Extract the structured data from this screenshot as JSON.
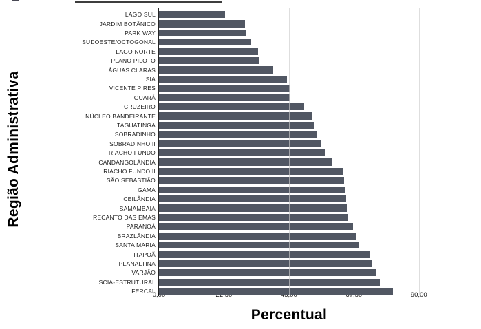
{
  "chart_data": {
    "type": "bar",
    "orientation": "horizontal",
    "title": "",
    "xlabel": "Percentual",
    "ylabel": "Região Administrativa",
    "xlim": [
      0,
      90
    ],
    "xticks": [
      0,
      22.5,
      45,
      67.5,
      90
    ],
    "xtick_labels": [
      "0,00",
      "22,50",
      "45,00",
      "67,50",
      "90,00"
    ],
    "grid": "vertical-light",
    "legend": "none",
    "bar_color": "#515763",
    "gridline_color": "#e0e0e0",
    "categories": [
      "LAGO SUL",
      "JARDIM BOTÂNICO",
      "PARK WAY",
      "SUDOESTE/OCTOGONAL",
      "LAGO NORTE",
      "PLANO PILOTO",
      "ÁGUAS CLARAS",
      "SIA",
      "VICENTE PIRES",
      "GUARÁ",
      "CRUZEIRO",
      "NÚCLEO BANDEIRANTE",
      "TAGUATINGA",
      "SOBRADINHO",
      "SOBRADINHO II",
      "RIACHO FUNDO",
      "CANDANGOLÂNDIA",
      "RIACHO FUNDO II",
      "SÃO SEBASTIÃO",
      "GAMA",
      "CEILÂNDIA",
      "SAMAMBAIA",
      "RECANTO DAS EMAS",
      "PARANOÁ",
      "BRAZLÂNDIA",
      "SANTA MARIA",
      "ITAPOÃ",
      "PLANALTINA",
      "VARJÃO",
      "SCIA-ESTRUTURAL",
      "FERCAL"
    ],
    "values": [
      22.8,
      29.8,
      30.0,
      32.0,
      34.3,
      34.9,
      39.6,
      44.4,
      45.3,
      45.5,
      50.3,
      52.8,
      53.9,
      54.6,
      55.9,
      57.6,
      59.9,
      63.5,
      64.1,
      64.5,
      64.9,
      65.0,
      65.5,
      67.1,
      68.5,
      69.3,
      73.2,
      73.8,
      75.4,
      76.4,
      81.0
    ]
  }
}
